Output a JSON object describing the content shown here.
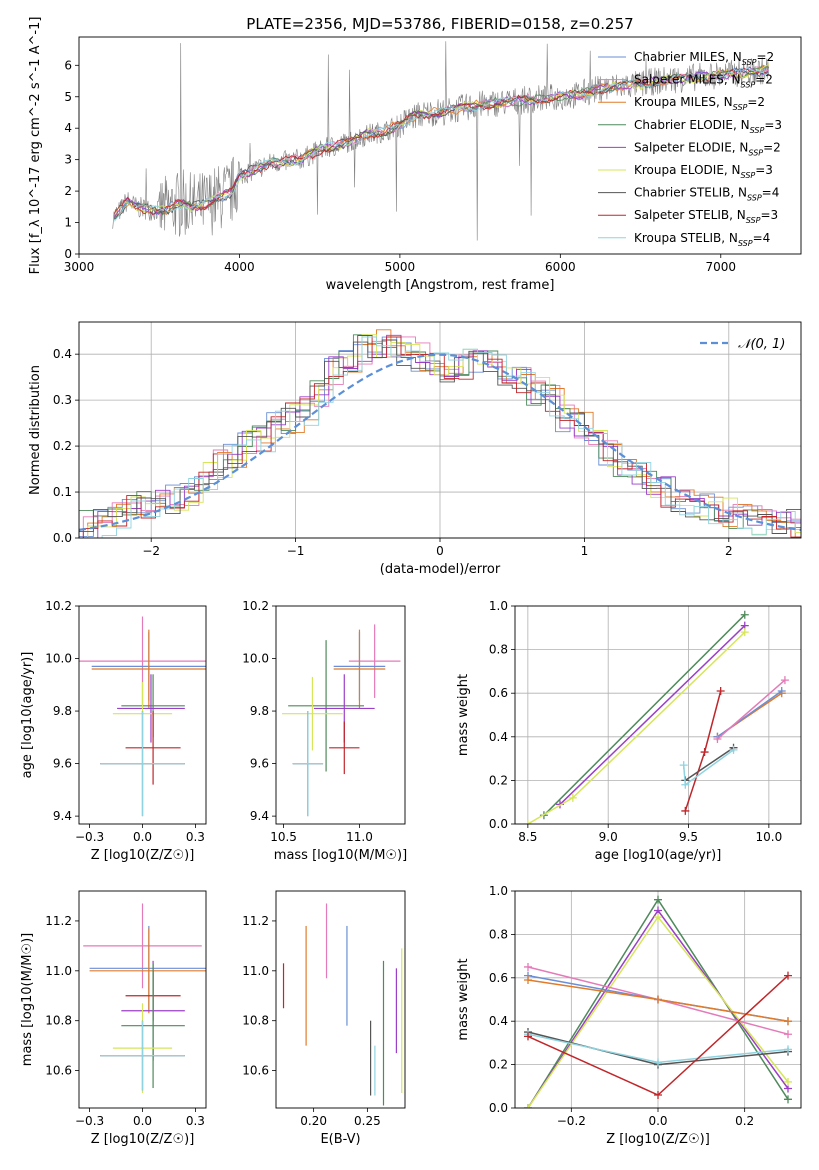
{
  "figure": {
    "title": "PLATE=2356, MJD=53786, FIBERID=0158, z=0.257"
  },
  "colors": {
    "Chabrier MILES": "#6a8fd6",
    "Salpeter MILES": "#e47ab8",
    "Kroupa MILES": "#e07b2a",
    "Chabrier ELODIE": "#4f8a5b",
    "Salpeter ELODIE": "#9b3fc7",
    "Kroupa ELODIE": "#d6e65a",
    "Chabrier STELIB": "#555555",
    "Salpeter STELIB": "#c0262a",
    "Kroupa STELIB": "#8fd3e0",
    "data": "#808080",
    "normal": "#5b8fd8"
  },
  "chart_data": [
    {
      "id": "spectrum",
      "type": "line",
      "xlabel": "wavelength [Angstrom, rest frame]",
      "ylabel": "Flux [f_λ 10^-17 erg cm^-2 s^-1 A^-1]",
      "xlim": [
        3000,
        7500
      ],
      "ylim": [
        0,
        6.9
      ],
      "xticks": [
        3000,
        4000,
        5000,
        6000,
        7000
      ],
      "yticks": [
        0,
        1,
        2,
        3,
        4,
        5,
        6
      ],
      "legend": {
        "placement": "top-right",
        "entries": [
          {
            "model": "Chabrier MILES",
            "label": "Chabrier MILES, N",
            "n": "2"
          },
          {
            "model": "Salpeter MILES",
            "label": "Salpeter MILES, N",
            "n": "2"
          },
          {
            "model": "Kroupa MILES",
            "label": "Kroupa MILES, N",
            "n": "2"
          },
          {
            "model": "Chabrier ELODIE",
            "label": "Chabrier ELODIE, N",
            "n": "3"
          },
          {
            "model": "Salpeter ELODIE",
            "label": "Salpeter ELODIE, N",
            "n": "2"
          },
          {
            "model": "Kroupa ELODIE",
            "label": "Kroupa ELODIE, N",
            "n": "3"
          },
          {
            "model": "Chabrier STELIB",
            "label": "Chabrier STELIB, N",
            "n": "4"
          },
          {
            "model": "Salpeter STELIB",
            "label": "Salpeter STELIB, N",
            "n": "3"
          },
          {
            "model": "Kroupa STELIB",
            "label": "Kroupa STELIB, N",
            "n": "4"
          }
        ],
        "subscript": "SSP"
      },
      "continuum": {
        "x": [
          3210,
          3250,
          3280,
          3300,
          3350,
          3400,
          3450,
          3500,
          3550,
          3600,
          3650,
          3700,
          3750,
          3800,
          3850,
          3900,
          3950,
          4000,
          4100,
          4200,
          4300,
          4400,
          4500,
          4600,
          4700,
          4800,
          4900,
          5000,
          5100,
          5200,
          5300,
          5400,
          5500,
          5600,
          5700,
          5800,
          5900,
          6000,
          6100,
          6200,
          6300,
          6400,
          6500,
          6600,
          6700,
          6800,
          6900,
          7000,
          7100,
          7200,
          7300
        ],
        "y": [
          1.15,
          1.35,
          1.55,
          1.7,
          1.5,
          1.45,
          1.4,
          1.4,
          1.42,
          1.55,
          1.6,
          1.5,
          1.55,
          1.6,
          1.75,
          1.85,
          1.95,
          2.5,
          2.7,
          2.9,
          2.95,
          3.05,
          3.3,
          3.45,
          3.6,
          3.8,
          3.9,
          4.1,
          4.4,
          4.5,
          4.55,
          4.65,
          4.75,
          4.8,
          4.85,
          4.9,
          4.95,
          5.0,
          5.05,
          5.2,
          5.3,
          5.35,
          5.4,
          5.5,
          5.55,
          5.6,
          5.65,
          5.7,
          5.75,
          5.8,
          5.85
        ]
      }
    },
    {
      "id": "residuals",
      "type": "step",
      "xlabel": "(data-model)/error",
      "ylabel": "Normed distribution",
      "xlim": [
        -2.5,
        2.5
      ],
      "ylim": [
        0,
        0.47
      ],
      "xticks": [
        -2,
        -1,
        0,
        1,
        2
      ],
      "yticks": [
        0.0,
        0.1,
        0.2,
        0.3,
        0.4
      ],
      "grid": true,
      "legend": {
        "placement": "top-right",
        "label": "𝒩(0, 1)"
      },
      "bins": [
        -2.5,
        -2.4,
        -2.3,
        -2.2,
        -2.1,
        -2.0,
        -1.9,
        -1.8,
        -1.7,
        -1.6,
        -1.5,
        -1.4,
        -1.3,
        -1.2,
        -1.1,
        -1.0,
        -0.9,
        -0.8,
        -0.7,
        -0.6,
        -0.5,
        -0.4,
        -0.3,
        -0.2,
        -0.1,
        0.0,
        0.1,
        0.2,
        0.3,
        0.4,
        0.5,
        0.6,
        0.7,
        0.8,
        0.9,
        1.0,
        1.1,
        1.2,
        1.3,
        1.4,
        1.5,
        1.6,
        1.7,
        1.8,
        1.9,
        2.0,
        2.1,
        2.2,
        2.3,
        2.4
      ],
      "density": [
        0.03,
        0.035,
        0.05,
        0.065,
        0.075,
        0.08,
        0.085,
        0.1,
        0.13,
        0.16,
        0.17,
        0.2,
        0.22,
        0.25,
        0.26,
        0.28,
        0.32,
        0.36,
        0.38,
        0.41,
        0.42,
        0.42,
        0.41,
        0.39,
        0.37,
        0.37,
        0.38,
        0.39,
        0.38,
        0.36,
        0.34,
        0.32,
        0.3,
        0.26,
        0.24,
        0.2,
        0.18,
        0.16,
        0.14,
        0.12,
        0.1,
        0.085,
        0.075,
        0.065,
        0.055,
        0.045,
        0.04,
        0.035,
        0.03,
        0.03
      ]
    },
    {
      "id": "age-vs-Z",
      "type": "errorbar",
      "xlabel": "Z [log10(Z/Z☉)]",
      "ylabel": "age [log10(age/yr)]",
      "xlim": [
        -0.3,
        0.3
      ],
      "ylim": [
        9.37,
        10.2
      ],
      "xticks": [
        -0.25,
        0.0,
        0.25
      ],
      "yticks": [
        9.4,
        9.6,
        9.8,
        10.0,
        10.2
      ],
      "points": [
        {
          "model": "Salpeter MILES",
          "x": 0.0,
          "xerr": 0.3,
          "y": 9.99,
          "yerr": 0.17
        },
        {
          "model": "Chabrier MILES",
          "x": 0.03,
          "xerr": 0.27,
          "y": 9.97,
          "yerr": 0.13
        },
        {
          "model": "Kroupa MILES",
          "x": 0.03,
          "xerr": 0.27,
          "y": 9.96,
          "yerr": 0.15
        },
        {
          "model": "Chabrier ELODIE",
          "x": 0.05,
          "xerr": 0.15,
          "y": 9.82,
          "yerr": 0.12
        },
        {
          "model": "Salpeter ELODIE",
          "x": 0.04,
          "xerr": 0.16,
          "y": 9.81,
          "yerr": 0.13
        },
        {
          "model": "Kroupa ELODIE",
          "x": 0.0,
          "xerr": 0.14,
          "y": 9.79,
          "yerr": 0.12
        },
        {
          "model": "Salpeter STELIB",
          "x": 0.05,
          "xerr": 0.13,
          "y": 9.66,
          "yerr": 0.14
        },
        {
          "model": "Chabrier STELIB",
          "x": 0.0,
          "xerr": 0.2,
          "y": 9.6,
          "yerr": 0.2
        },
        {
          "model": "Kroupa STELIB",
          "x": 0.0,
          "xerr": 0.2,
          "y": 9.6,
          "yerr": 0.2
        }
      ]
    },
    {
      "id": "age-vs-mass",
      "type": "errorbar",
      "xlabel": "mass [log10(M/M☉)]",
      "ylabel": "",
      "xlim": [
        10.45,
        11.3
      ],
      "ylim": [
        9.37,
        10.2
      ],
      "xticks": [
        10.5,
        11.0
      ],
      "yticks": [
        9.4,
        9.6,
        9.8,
        10.0,
        10.2
      ],
      "points": [
        {
          "model": "Salpeter MILES",
          "x": 11.1,
          "xerr": 0.17,
          "y": 9.99,
          "yerr": 0.14
        },
        {
          "model": "Chabrier MILES",
          "x": 11.0,
          "xerr": 0.17,
          "y": 9.97,
          "yerr": 0.13
        },
        {
          "model": "Kroupa MILES",
          "x": 11.0,
          "xerr": 0.17,
          "y": 9.96,
          "yerr": 0.15
        },
        {
          "model": "Chabrier ELODIE",
          "x": 10.78,
          "xerr": 0.25,
          "y": 9.82,
          "yerr": 0.25
        },
        {
          "model": "Salpeter ELODIE",
          "x": 10.9,
          "xerr": 0.2,
          "y": 9.81,
          "yerr": 0.13
        },
        {
          "model": "Kroupa ELODIE",
          "x": 10.69,
          "xerr": 0.2,
          "y": 9.79,
          "yerr": 0.14
        },
        {
          "model": "Salpeter STELIB",
          "x": 10.9,
          "xerr": 0.1,
          "y": 9.66,
          "yerr": 0.1
        },
        {
          "model": "Chabrier STELIB",
          "x": 10.66,
          "xerr": 0.1,
          "y": 9.6,
          "yerr": 0.2
        },
        {
          "model": "Kroupa STELIB",
          "x": 10.66,
          "xerr": 0.1,
          "y": 9.6,
          "yerr": 0.2
        }
      ]
    },
    {
      "id": "weight-vs-age",
      "type": "line",
      "xlabel": "age [log10(age/yr)]",
      "ylabel": "mass weight",
      "xlim": [
        8.42,
        10.2
      ],
      "ylim": [
        0.0,
        1.0
      ],
      "xticks": [
        8.5,
        9.0,
        9.5,
        10.0
      ],
      "yticks": [
        0.0,
        0.2,
        0.4,
        0.6,
        0.8,
        1.0
      ],
      "grid": true,
      "series": [
        {
          "model": "Chabrier ELODIE",
          "x": [
            8.6,
            9.85
          ],
          "y": [
            0.04,
            0.96
          ]
        },
        {
          "model": "Salpeter ELODIE",
          "x": [
            8.7,
            9.85
          ],
          "y": [
            0.09,
            0.91
          ]
        },
        {
          "model": "Kroupa ELODIE",
          "x": [
            8.5,
            8.78,
            9.85
          ],
          "y": [
            0.0,
            0.12,
            0.88
          ]
        },
        {
          "model": "Salpeter STELIB",
          "x": [
            9.48,
            9.6,
            9.7
          ],
          "y": [
            0.06,
            0.33,
            0.61
          ]
        },
        {
          "model": "Chabrier STELIB",
          "x": [
            9.48,
            9.78
          ],
          "y": [
            0.2,
            0.35
          ]
        },
        {
          "model": "Kroupa STELIB",
          "x": [
            9.47,
            9.48,
            9.78
          ],
          "y": [
            0.27,
            0.18,
            0.34
          ]
        },
        {
          "model": "Kroupa MILES",
          "x": [
            9.68,
            10.08
          ],
          "y": [
            0.4,
            0.6
          ]
        },
        {
          "model": "Chabrier MILES",
          "x": [
            9.68,
            10.08
          ],
          "y": [
            0.4,
            0.61
          ]
        },
        {
          "model": "Salpeter MILES",
          "x": [
            9.68,
            10.1
          ],
          "y": [
            0.39,
            0.66
          ]
        }
      ]
    },
    {
      "id": "mass-vs-Z",
      "type": "errorbar",
      "xlabel": "Z [log10(Z/Z☉)]",
      "ylabel": "mass [log10(M/M☉)]",
      "xlim": [
        -0.3,
        0.3
      ],
      "ylim": [
        10.45,
        11.32
      ],
      "xticks": [
        -0.25,
        0.0,
        0.25
      ],
      "yticks": [
        10.6,
        10.8,
        11.0,
        11.2
      ],
      "points": [
        {
          "model": "Salpeter MILES",
          "x": 0.0,
          "xerr": 0.28,
          "y": 11.1,
          "yerr": 0.17
        },
        {
          "model": "Chabrier MILES",
          "x": 0.03,
          "xerr": 0.28,
          "y": 11.01,
          "yerr": 0.17
        },
        {
          "model": "Kroupa MILES",
          "x": 0.03,
          "xerr": 0.28,
          "y": 11.0,
          "yerr": 0.17
        },
        {
          "model": "Salpeter STELIB",
          "x": 0.05,
          "xerr": 0.13,
          "y": 10.9,
          "yerr": 0.1
        },
        {
          "model": "Salpeter ELODIE",
          "x": 0.05,
          "xerr": 0.15,
          "y": 10.84,
          "yerr": 0.2
        },
        {
          "model": "Chabrier ELODIE",
          "x": 0.05,
          "xerr": 0.15,
          "y": 10.78,
          "yerr": 0.25
        },
        {
          "model": "Kroupa ELODIE",
          "x": 0.0,
          "xerr": 0.14,
          "y": 10.69,
          "yerr": 0.18
        },
        {
          "model": "Chabrier STELIB",
          "x": 0.0,
          "xerr": 0.2,
          "y": 10.66,
          "yerr": 0.14
        },
        {
          "model": "Kroupa STELIB",
          "x": 0.0,
          "xerr": 0.2,
          "y": 10.66,
          "yerr": 0.14
        }
      ]
    },
    {
      "id": "mass-vs-EBV",
      "type": "errorbar",
      "xlabel": "E(B-V)",
      "ylabel": "",
      "xlim": [
        0.165,
        0.285
      ],
      "ylim": [
        10.45,
        11.32
      ],
      "xticks": [
        0.2,
        0.25
      ],
      "yticks": [
        10.6,
        10.8,
        11.0,
        11.2
      ],
      "points": [
        {
          "model": "Salpeter STELIB",
          "x": 0.172,
          "y": 10.94,
          "yerr": 0.09
        },
        {
          "model": "Kroupa MILES",
          "x": 0.193,
          "y": 10.94,
          "yerr": 0.24
        },
        {
          "model": "Salpeter MILES",
          "x": 0.212,
          "y": 11.12,
          "yerr": 0.15
        },
        {
          "model": "Chabrier MILES",
          "x": 0.231,
          "y": 10.98,
          "yerr": 0.2
        },
        {
          "model": "Chabrier STELIB",
          "x": 0.253,
          "y": 10.65,
          "yerr": 0.15
        },
        {
          "model": "Kroupa STELIB",
          "x": 0.257,
          "y": 10.6,
          "yerr": 0.1
        },
        {
          "model": "Chabrier ELODIE",
          "x": 0.265,
          "y": 10.75,
          "yerr": 0.29
        },
        {
          "model": "Salpeter ELODIE",
          "x": 0.277,
          "y": 10.84,
          "yerr": 0.17
        },
        {
          "model": "Kroupa ELODIE",
          "x": 0.282,
          "y": 10.8,
          "yerr": 0.29
        }
      ]
    },
    {
      "id": "weight-vs-Z",
      "type": "line",
      "xlabel": "Z [log10(Z/Z☉)]",
      "ylabel": "mass weight",
      "xlim": [
        -0.33,
        0.33
      ],
      "ylim": [
        0.0,
        1.0
      ],
      "xticks": [
        -0.2,
        0.0,
        0.2
      ],
      "yticks": [
        0.0,
        0.2,
        0.4,
        0.6,
        0.8,
        1.0
      ],
      "grid": true,
      "series": [
        {
          "model": "Chabrier ELODIE",
          "x": [
            -0.3,
            0.0,
            0.3
          ],
          "y": [
            0.0,
            0.96,
            0.04
          ]
        },
        {
          "model": "Salpeter ELODIE",
          "x": [
            -0.3,
            0.0,
            0.3
          ],
          "y": [
            0.0,
            0.91,
            0.09
          ]
        },
        {
          "model": "Kroupa ELODIE",
          "x": [
            -0.3,
            0.0,
            0.3
          ],
          "y": [
            0.0,
            0.88,
            0.12
          ]
        },
        {
          "model": "Salpeter MILES",
          "x": [
            -0.3,
            0.0,
            0.3
          ],
          "y": [
            0.65,
            0.5,
            0.34
          ]
        },
        {
          "model": "Chabrier MILES",
          "x": [
            -0.3,
            0.0,
            0.3
          ],
          "y": [
            0.61,
            0.5,
            0.4
          ]
        },
        {
          "model": "Kroupa MILES",
          "x": [
            -0.3,
            0.0,
            0.3
          ],
          "y": [
            0.59,
            0.5,
            0.4
          ]
        },
        {
          "model": "Chabrier STELIB",
          "x": [
            -0.3,
            0.0,
            0.3
          ],
          "y": [
            0.35,
            0.2,
            0.26
          ]
        },
        {
          "model": "Kroupa STELIB",
          "x": [
            -0.3,
            0.0,
            0.3
          ],
          "y": [
            0.34,
            0.21,
            0.27
          ]
        },
        {
          "model": "Salpeter STELIB",
          "x": [
            -0.3,
            0.0,
            0.3
          ],
          "y": [
            0.33,
            0.06,
            0.61
          ]
        }
      ]
    }
  ]
}
